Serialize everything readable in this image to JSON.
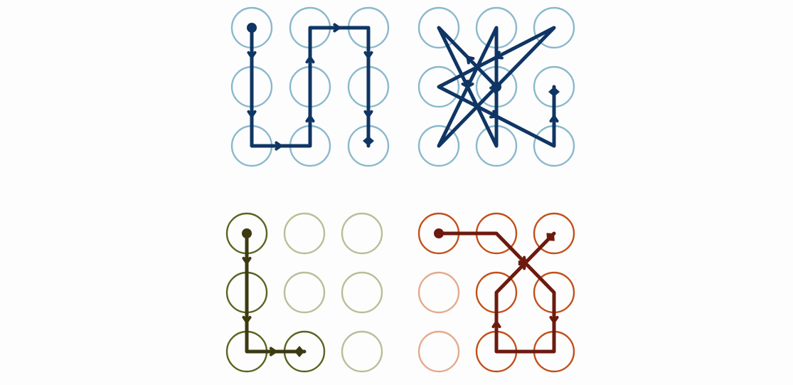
{
  "grid": {
    "rows": 3,
    "cols": 3
  },
  "patterns": [
    {
      "id": "pattern-snake",
      "dot_color": "#8ab8cc",
      "line_color": "#0f3564",
      "sequence": [
        0,
        3,
        6,
        7,
        4,
        1,
        2,
        5,
        8
      ],
      "arrows_on_segments": [
        0,
        1,
        2,
        3,
        4,
        5,
        6,
        7
      ]
    },
    {
      "id": "pattern-star",
      "dot_color": "#8ab8cc",
      "line_color": "#0f3564",
      "sequence": [
        4,
        0,
        7,
        1,
        6,
        2,
        3,
        8,
        5
      ],
      "arrows_on_segments": [
        0,
        1,
        3,
        4,
        5,
        6,
        7
      ],
      "end_marker_shift": 0
    },
    {
      "id": "pattern-l-shape",
      "dot_color": "#5a6420",
      "dot_color_inactive": "#b7bf96",
      "line_color": "#3d3a12",
      "sequence": [
        0,
        3,
        6,
        7
      ],
      "arrows_on_segments": [
        0,
        1,
        2
      ]
    },
    {
      "id": "pattern-crossed-loop",
      "dot_color": "#c2501a",
      "dot_color_inactive": "#e5a98c",
      "line_color": "#6d1a0e",
      "sequence": [
        0,
        1,
        5,
        8,
        7,
        4,
        2
      ],
      "arrows_on_segments": [
        1,
        2,
        4,
        5
      ]
    }
  ]
}
